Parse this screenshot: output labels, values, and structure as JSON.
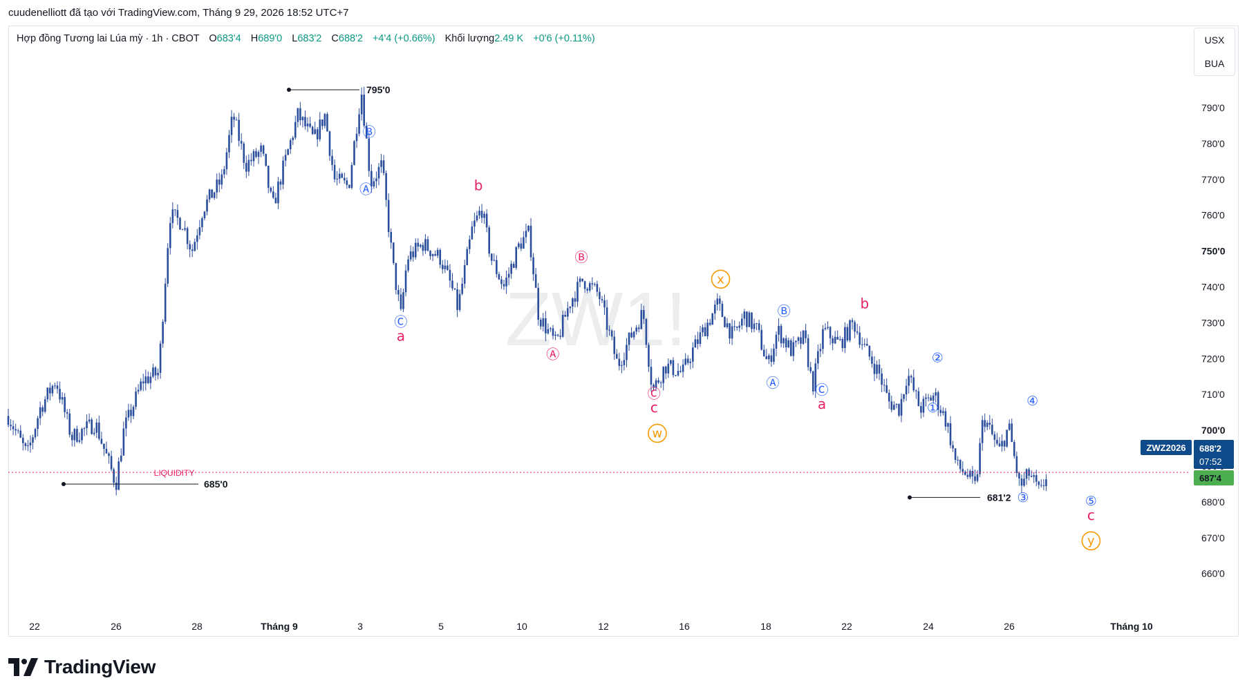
{
  "header": {
    "snapshot_note": "cuudenelliott đã tạo với TradingView.com, Tháng 9 29, 2026 18:52 UTC+7"
  },
  "legend": {
    "symbol_title": "Hợp đồng Tương lai Lúa mỳ · 1h · CBOT",
    "open_label": "O",
    "open": "683'4",
    "high_label": "H",
    "high": "689'0",
    "low_label": "L",
    "low": "683'2",
    "close_label": "C",
    "close": "688'2",
    "change": "+4'4 (+0.66%)",
    "volume_label": "Khối lượng",
    "volume": "2.49 K",
    "volume_change": "+0'6 (+0.11%)"
  },
  "scale_box": {
    "unit": "USX",
    "mode": "BUA"
  },
  "watermark": "ZW1!",
  "brand": {
    "name": "TradingView"
  },
  "colors": {
    "candle": "#2a4d9c",
    "blue_label": "#2962ff",
    "pink_label": "#e91e63",
    "orange_label": "#f59a00",
    "price_tag_bg": "#0f4a8a",
    "green_tag_bg": "#4caf50",
    "liquidity": "#e91e63"
  },
  "chart_data": {
    "type": "candlestick",
    "symbol": "ZWZ2026",
    "interval": "1h",
    "y_axis": {
      "range": [
        654,
        800
      ],
      "ticks": [
        "660'0",
        "670'0",
        "680'0",
        "690'0",
        "700'0",
        "710'0",
        "720'0",
        "730'0",
        "740'0",
        "750'0",
        "760'0",
        "770'0",
        "780'0",
        "790'0"
      ],
      "tick_values": [
        660,
        670,
        680,
        690,
        700,
        710,
        720,
        730,
        740,
        750,
        760,
        770,
        780,
        790
      ]
    },
    "x_axis": {
      "labels": [
        "22",
        "26",
        "28",
        "Tháng 9",
        "3",
        "5",
        "10",
        "12",
        "16",
        "18",
        "22",
        "24",
        "26",
        "Tháng 10"
      ],
      "bold_labels": [
        "Tháng 9",
        "Tháng 10"
      ]
    },
    "price_path": [
      {
        "day": 0,
        "price": 704
      },
      {
        "day": 1.2,
        "price": 693
      },
      {
        "day": 2,
        "price": 706
      },
      {
        "day": 3,
        "price": 714
      },
      {
        "day": 4,
        "price": 698
      },
      {
        "day": 5.5,
        "price": 702
      },
      {
        "day": 6.8,
        "price": 685
      },
      {
        "day": 7.3,
        "price": 700
      },
      {
        "day": 8.5,
        "price": 714
      },
      {
        "day": 9.5,
        "price": 716
      },
      {
        "day": 10.2,
        "price": 760
      },
      {
        "day": 11,
        "price": 758
      },
      {
        "day": 11.6,
        "price": 750
      },
      {
        "day": 12.3,
        "price": 762
      },
      {
        "day": 13.5,
        "price": 770
      },
      {
        "day": 14.2,
        "price": 788
      },
      {
        "day": 15,
        "price": 774
      },
      {
        "day": 16,
        "price": 778
      },
      {
        "day": 16.7,
        "price": 762
      },
      {
        "day": 17.3,
        "price": 772
      },
      {
        "day": 18.3,
        "price": 788
      },
      {
        "day": 19.3,
        "price": 781
      },
      {
        "day": 20,
        "price": 788
      },
      {
        "day": 20.6,
        "price": 770
      },
      {
        "day": 21.5,
        "price": 768
      },
      {
        "day": 22.3,
        "price": 795
      },
      {
        "day": 22.9,
        "price": 769
      },
      {
        "day": 23.6,
        "price": 774
      },
      {
        "day": 24.3,
        "price": 746
      },
      {
        "day": 24.8,
        "price": 732
      },
      {
        "day": 25.2,
        "price": 748
      },
      {
        "day": 26.2,
        "price": 752
      },
      {
        "day": 27.3,
        "price": 748
      },
      {
        "day": 28,
        "price": 740
      },
      {
        "day": 28.4,
        "price": 734
      },
      {
        "day": 29.3,
        "price": 756
      },
      {
        "day": 29.9,
        "price": 762
      },
      {
        "day": 30.5,
        "price": 748
      },
      {
        "day": 31.3,
        "price": 740
      },
      {
        "day": 32.3,
        "price": 752
      },
      {
        "day": 32.9,
        "price": 755
      },
      {
        "day": 33.5,
        "price": 732
      },
      {
        "day": 34.6,
        "price": 724
      },
      {
        "day": 35.5,
        "price": 736
      },
      {
        "day": 36.3,
        "price": 742
      },
      {
        "day": 37.3,
        "price": 738
      },
      {
        "day": 38.5,
        "price": 718
      },
      {
        "day": 39.3,
        "price": 726
      },
      {
        "day": 40.1,
        "price": 733
      },
      {
        "day": 40.7,
        "price": 711
      },
      {
        "day": 41.5,
        "price": 718
      },
      {
        "day": 42.6,
        "price": 716
      },
      {
        "day": 43.2,
        "price": 722
      },
      {
        "day": 44.8,
        "price": 735
      },
      {
        "day": 45.8,
        "price": 726
      },
      {
        "day": 46.5,
        "price": 732
      },
      {
        "day": 47.3,
        "price": 728
      },
      {
        "day": 48,
        "price": 718
      },
      {
        "day": 48.6,
        "price": 728
      },
      {
        "day": 49.5,
        "price": 722
      },
      {
        "day": 50.3,
        "price": 726
      },
      {
        "day": 50.8,
        "price": 712
      },
      {
        "day": 51.5,
        "price": 728
      },
      {
        "day": 52.5,
        "price": 724
      },
      {
        "day": 53.4,
        "price": 730
      },
      {
        "day": 54.2,
        "price": 722
      },
      {
        "day": 55,
        "price": 716
      },
      {
        "day": 55.6,
        "price": 708
      },
      {
        "day": 56.3,
        "price": 706
      },
      {
        "day": 56.8,
        "price": 716
      },
      {
        "day": 57.6,
        "price": 706
      },
      {
        "day": 58.5,
        "price": 710
      },
      {
        "day": 59.3,
        "price": 702
      },
      {
        "day": 59.9,
        "price": 690
      },
      {
        "day": 60.5,
        "price": 688
      },
      {
        "day": 61.1,
        "price": 684
      },
      {
        "day": 61.6,
        "price": 704
      },
      {
        "day": 62.6,
        "price": 694
      },
      {
        "day": 63.2,
        "price": 701
      },
      {
        "day": 63.9,
        "price": 684
      },
      {
        "day": 64.5,
        "price": 688
      },
      {
        "day": 65.2,
        "price": 682
      },
      {
        "day": 65.6,
        "price": 688
      }
    ],
    "horizontal_levels": [
      {
        "label": "795'0",
        "price": 795
      },
      {
        "label": "685'0",
        "price": 685
      },
      {
        "label": "681'2",
        "price": 681.25
      }
    ],
    "liquidity_line": {
      "label": "LIQUIDITY",
      "price": 688.25
    },
    "price_tags": {
      "symbol_tag": "ZWZ2026",
      "last_price": "688'2",
      "countdown": "07:52",
      "second_price": "687'4"
    },
    "wave_labels": [
      {
        "text": "Ⓑ",
        "color": "blue",
        "day": 22.8,
        "price": 782
      },
      {
        "text": "Ⓐ",
        "color": "blue",
        "day": 22.6,
        "price": 766
      },
      {
        "text": "Ⓒ",
        "color": "blue",
        "day": 24.8,
        "price": 729
      },
      {
        "text": "a",
        "color": "pink",
        "day": 24.8,
        "price": 725
      },
      {
        "text": "b",
        "color": "pink",
        "day": 29.7,
        "price": 767
      },
      {
        "text": "Ⓑ",
        "color": "pink",
        "day": 36.2,
        "price": 747
      },
      {
        "text": "Ⓐ",
        "color": "pink",
        "day": 34.4,
        "price": 720
      },
      {
        "text": "Ⓒ",
        "color": "pink",
        "day": 40.8,
        "price": 709
      },
      {
        "text": "c",
        "color": "pink",
        "day": 40.8,
        "price": 705
      },
      {
        "text": "w",
        "color": "orange",
        "day": 41,
        "price": 698
      },
      {
        "text": "x",
        "color": "orange",
        "day": 45,
        "price": 741
      },
      {
        "text": "Ⓑ",
        "color": "blue",
        "day": 49,
        "price": 732
      },
      {
        "text": "Ⓐ",
        "color": "blue",
        "day": 48.3,
        "price": 712
      },
      {
        "text": "Ⓒ",
        "color": "blue",
        "day": 51.4,
        "price": 710
      },
      {
        "text": "a",
        "color": "pink",
        "day": 51.4,
        "price": 706
      },
      {
        "text": "b",
        "color": "pink",
        "day": 54.1,
        "price": 734
      },
      {
        "text": "②",
        "color": "blue",
        "day": 58.7,
        "price": 719
      },
      {
        "text": "①",
        "color": "blue",
        "day": 58.4,
        "price": 705
      },
      {
        "text": "③",
        "color": "blue",
        "day": 64.1,
        "price": 680
      },
      {
        "text": "④",
        "color": "blue",
        "day": 64.7,
        "price": 707
      },
      {
        "text": "⑤",
        "color": "blue",
        "day": 68.4,
        "price": 679
      },
      {
        "text": "c",
        "color": "pink",
        "day": 68.4,
        "price": 675
      },
      {
        "text": "y",
        "color": "orange",
        "day": 68.4,
        "price": 668
      }
    ]
  }
}
